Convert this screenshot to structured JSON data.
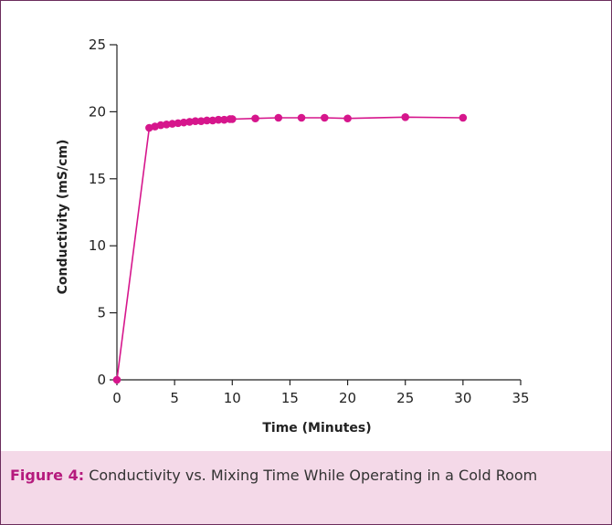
{
  "colors": {
    "series": "#d6168c",
    "axis": "#222222",
    "caption_bg": "#f4d9e8",
    "caption_label": "#b51a7d",
    "border": "#6b2d5c"
  },
  "caption": {
    "label": "Figure 4:",
    "text": "Conductivity vs. Mixing Time While Operating in a Cold Room"
  },
  "chart_data": {
    "type": "line",
    "title": "",
    "xlabel": "Time (Minutes)",
    "ylabel": "Conductivity (mS/cm)",
    "xlim": [
      0,
      35
    ],
    "ylim": [
      0,
      25
    ],
    "xticks": [
      0,
      5,
      10,
      15,
      20,
      25,
      30,
      35
    ],
    "yticks": [
      0,
      5,
      10,
      15,
      20,
      25
    ],
    "grid": false,
    "legend": "none",
    "series": [
      {
        "x": [
          0,
          2.8,
          3.3,
          3.8,
          4.3,
          4.8,
          5.3,
          5.8,
          6.3,
          6.8,
          7.3,
          7.8,
          8.3,
          8.8,
          9.3,
          9.8,
          10,
          12,
          14,
          16,
          18,
          20,
          25,
          30
        ],
        "y": [
          0,
          18.8,
          18.9,
          19.0,
          19.05,
          19.1,
          19.15,
          19.2,
          19.25,
          19.3,
          19.3,
          19.35,
          19.35,
          19.4,
          19.4,
          19.45,
          19.45,
          19.5,
          19.55,
          19.55,
          19.55,
          19.5,
          19.6,
          19.55
        ]
      }
    ]
  }
}
